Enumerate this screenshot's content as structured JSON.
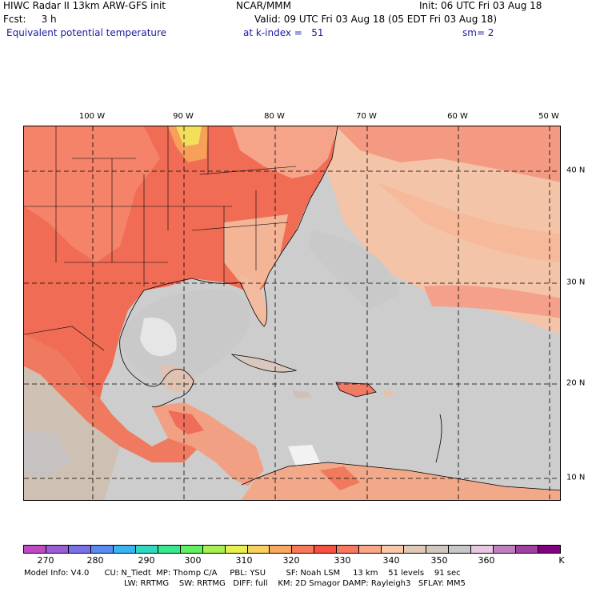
{
  "header": {
    "line1_left": "HIWC Radar II 13km ARW-GFS init",
    "line1_mid": "NCAR/MMM",
    "line1_right": "Init: 06 UTC Fri 03 Aug 18",
    "line2_left": "Fcst:     3 h",
    "line2_right": "Valid: 09 UTC Fri 03 Aug 18 (05 EDT Fri 03 Aug 18)",
    "line3_left": "Equivalent potential temperature",
    "line3_mid": "at k-index =   51",
    "line3_right": "sm= 2"
  },
  "map": {
    "lon_labels": [
      "100 W",
      "90 W",
      "80 W",
      "70 W",
      "60 W",
      "50 W"
    ],
    "lat_labels": [
      "40 N",
      "30 N",
      "20 N",
      "10 N"
    ]
  },
  "colorbar": {
    "colors": [
      "#c04ac4",
      "#9a5ed6",
      "#7a70e8",
      "#5a8cf0",
      "#3ab4f0",
      "#30d8c0",
      "#38e890",
      "#60f060",
      "#a8f050",
      "#e8f050",
      "#f8d060",
      "#f8a860",
      "#f87858",
      "#f85040",
      "#f87860",
      "#f8a888",
      "#f8c8a8",
      "#e0c8b8",
      "#d0c8c0",
      "#c8c8c8",
      "#e8c8e0",
      "#c080c0",
      "#a040a0",
      "#800080"
    ],
    "labels": [
      "270",
      "280",
      "290",
      "300",
      "310",
      "320",
      "330",
      "340",
      "350",
      "360",
      "K"
    ]
  },
  "footer": {
    "line1": "Model Info: V4.0      CU: N_Tiedt  MP: Thomp C/A     PBL: YSU        SF: Noah LSM     13 km    51 levels    91 sec",
    "line2": "LW: RRTMG    SW: RRTMG   DIFF: full    KM: 2D Smagor DAMP: Rayleigh3   SFLAY: MM5"
  }
}
